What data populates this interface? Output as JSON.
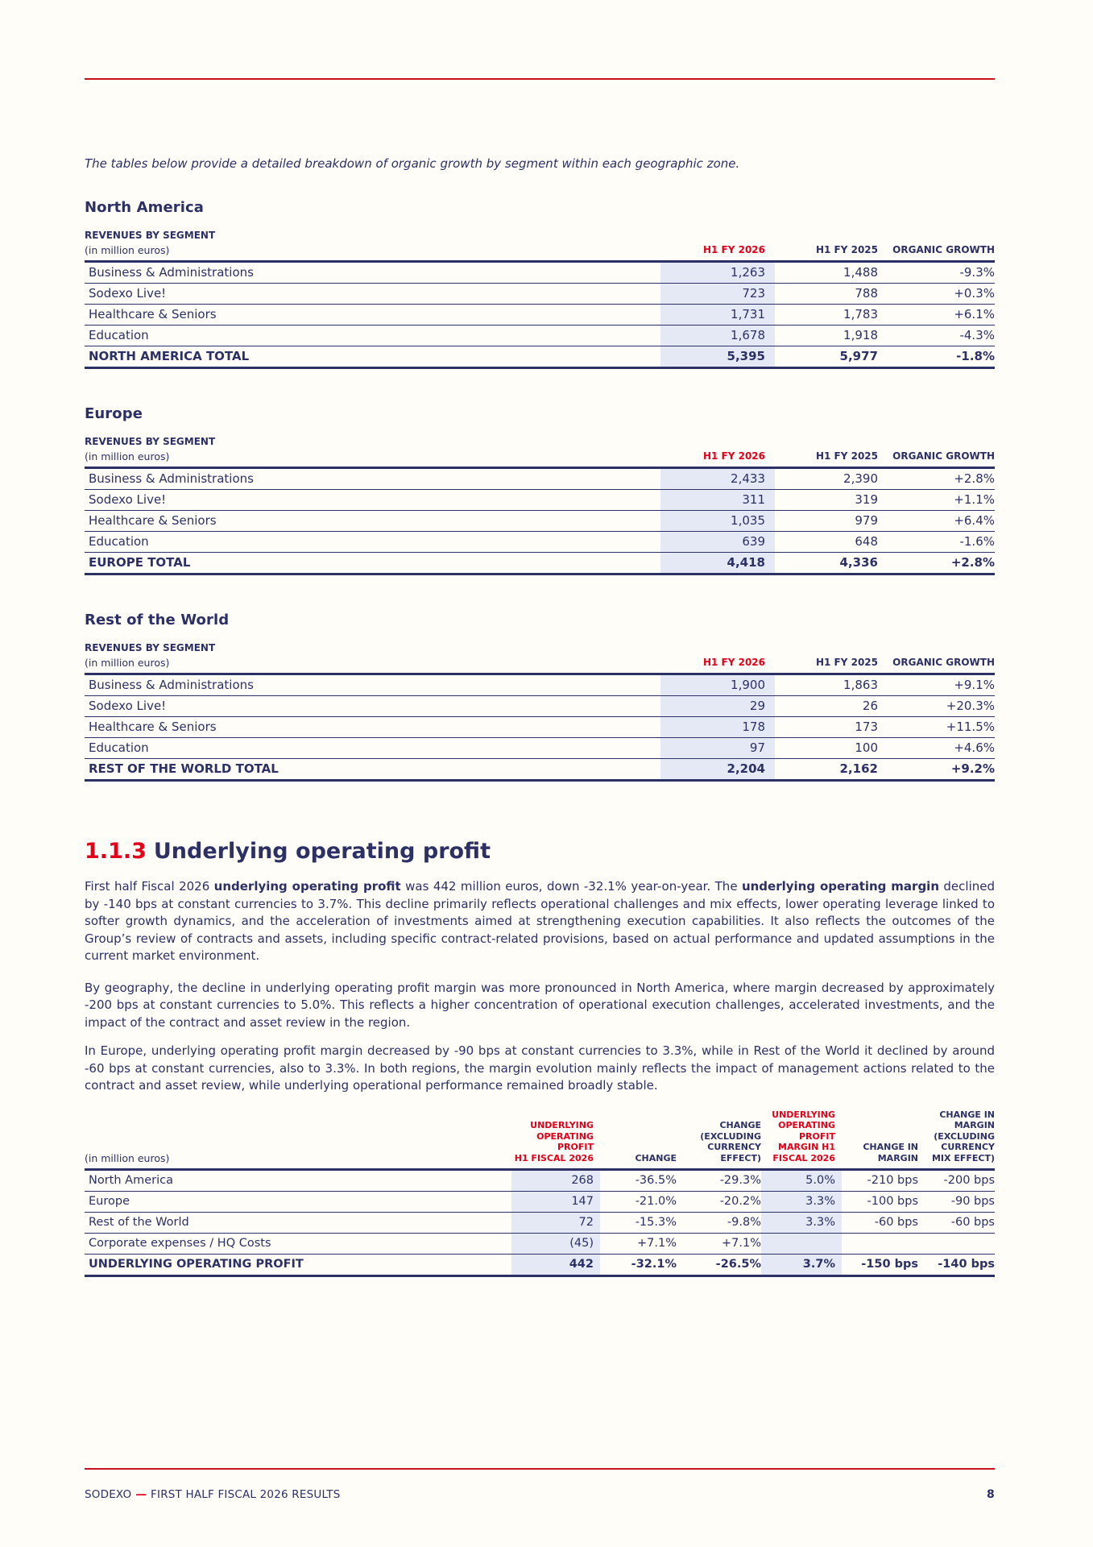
{
  "colors": {
    "navy_text": "#2C3064",
    "accent_red": "#E2001A",
    "rule_red": "#C8101E",
    "column_highlight": "#E4E9F5",
    "page_background": "#FEFDF8"
  },
  "intro": "The tables below provide a detailed breakdown of organic growth by segment within each geographic zone.",
  "region_tables": [
    {
      "region": "North America",
      "table_label_line1": "REVENUES BY SEGMENT",
      "table_label_line2": "(in million euros)",
      "columns": [
        "H1 FY 2026",
        "H1 FY 2025",
        "ORGANIC GROWTH"
      ],
      "rows": [
        [
          "Business & Administrations",
          "1,263",
          "1,488",
          "-9.3%"
        ],
        [
          "Sodexo Live!",
          "723",
          "788",
          "+0.3%"
        ],
        [
          "Healthcare & Seniors",
          "1,731",
          "1,783",
          "+6.1%"
        ],
        [
          "Education",
          "1,678",
          "1,918",
          "-4.3%"
        ]
      ],
      "total": [
        "NORTH AMERICA TOTAL",
        "5,395",
        "5,977",
        "-1.8%"
      ]
    },
    {
      "region": "Europe",
      "table_label_line1": "REVENUES BY SEGMENT",
      "table_label_line2": "(in million euros)",
      "columns": [
        "H1 FY 2026",
        "H1 FY 2025",
        "ORGANIC GROWTH"
      ],
      "rows": [
        [
          "Business & Administrations",
          "2,433",
          "2,390",
          "+2.8%"
        ],
        [
          "Sodexo Live!",
          "311",
          "319",
          "+1.1%"
        ],
        [
          "Healthcare & Seniors",
          "1,035",
          "979",
          "+6.4%"
        ],
        [
          "Education",
          "639",
          "648",
          "-1.6%"
        ]
      ],
      "total": [
        "EUROPE TOTAL",
        "4,418",
        "4,336",
        "+2.8%"
      ]
    },
    {
      "region": "Rest of the World",
      "table_label_line1": "REVENUES BY SEGMENT",
      "table_label_line2": "(in million euros)",
      "columns": [
        "H1 FY 2026",
        "H1 FY 2025",
        "ORGANIC GROWTH"
      ],
      "rows": [
        [
          "Business & Administrations",
          "1,900",
          "1,863",
          "+9.1%"
        ],
        [
          "Sodexo Live!",
          "29",
          "26",
          "+20.3%"
        ],
        [
          "Healthcare & Seniors",
          "178",
          "173",
          "+11.5%"
        ],
        [
          "Education",
          "97",
          "100",
          "+4.6%"
        ]
      ],
      "total": [
        "REST OF THE WORLD TOTAL",
        "2,204",
        "2,162",
        "+9.2%"
      ]
    }
  ],
  "section_heading": {
    "number": "1.1.3",
    "title": "Underlying operating profit"
  },
  "paragraphs": [
    {
      "runs": [
        {
          "t": "First half Fiscal 2026 ",
          "b": false
        },
        {
          "t": "underlying operating profit",
          "b": true
        },
        {
          "t": " was 442 million euros, down -32.1% year-on-year. The ",
          "b": false
        },
        {
          "t": "underlying operating margin",
          "b": true
        },
        {
          "t": " declined by -140 bps at constant currencies to 3.7%. This decline primarily reflects operational challenges and mix effects, lower operating leverage linked to softer growth dynamics, and the acceleration of investments aimed at strengthening execution capabilities. It also reflects the outcomes of the Group’s review of contracts and assets, including specific contract-related provisions, based on actual performance and updated assumptions in the current market environment.",
          "b": false
        }
      ]
    },
    {
      "runs": [
        {
          "t": "By geography, the decline in underlying operating profit margin was more pronounced in North America, where margin decreased by approximately -200 bps at constant currencies to 5.0%. This reflects a higher concentration of operational execution challenges, accelerated investments, and the impact of the contract and asset review in the region.",
          "b": false
        }
      ]
    },
    {
      "runs": [
        {
          "t": "In Europe, underlying operating profit margin decreased by -90 bps at constant currencies to 3.3%, while in Rest of the World it declined by around -60 bps at constant currencies, also to 3.3%. In both regions, the margin evolution mainly reflects the impact of management actions related to the contract and asset review, while underlying operational performance remained broadly stable.",
          "b": false
        }
      ]
    }
  ],
  "profit_table": {
    "row_label_header": "(in million euros)",
    "columns": [
      {
        "label": "UNDERLYING\nOPERATING\nPROFIT\nH1 FISCAL 2026"
      },
      {
        "label": "CHANGE"
      },
      {
        "label": "CHANGE\n(EXCLUDING\nCURRENCY\nEFFECT)"
      },
      {
        "label": "UNDERLYING\nOPERATING\nPROFIT\nMARGIN H1\nFISCAL 2026"
      },
      {
        "label": "CHANGE IN\nMARGIN"
      },
      {
        "label": "CHANGE IN\nMARGIN\n(EXCLUDING\nCURRENCY\nMIX EFFECT)"
      }
    ],
    "rows": [
      [
        "North America",
        "268",
        "-36.5%",
        "-29.3%",
        "5.0%",
        "-210 bps",
        "-200 bps"
      ],
      [
        "Europe",
        "147",
        "-21.0%",
        "-20.2%",
        "3.3%",
        "-100 bps",
        "-90 bps"
      ],
      [
        "Rest of the World",
        "72",
        "-15.3%",
        "-9.8%",
        "3.3%",
        "-60 bps",
        "-60 bps"
      ],
      [
        "Corporate expenses / HQ Costs",
        "(45)",
        "+7.1%",
        "+7.1%",
        "",
        "",
        ""
      ]
    ],
    "total": [
      "UNDERLYING OPERATING PROFIT",
      "442",
      "-32.1%",
      "-26.5%",
      "3.7%",
      "-150 bps",
      "-140 bps"
    ]
  },
  "footer": {
    "brand": "SODEXO",
    "separator": "—",
    "title": "FIRST HALF FISCAL 2026 RESULTS",
    "page_number": "8"
  }
}
